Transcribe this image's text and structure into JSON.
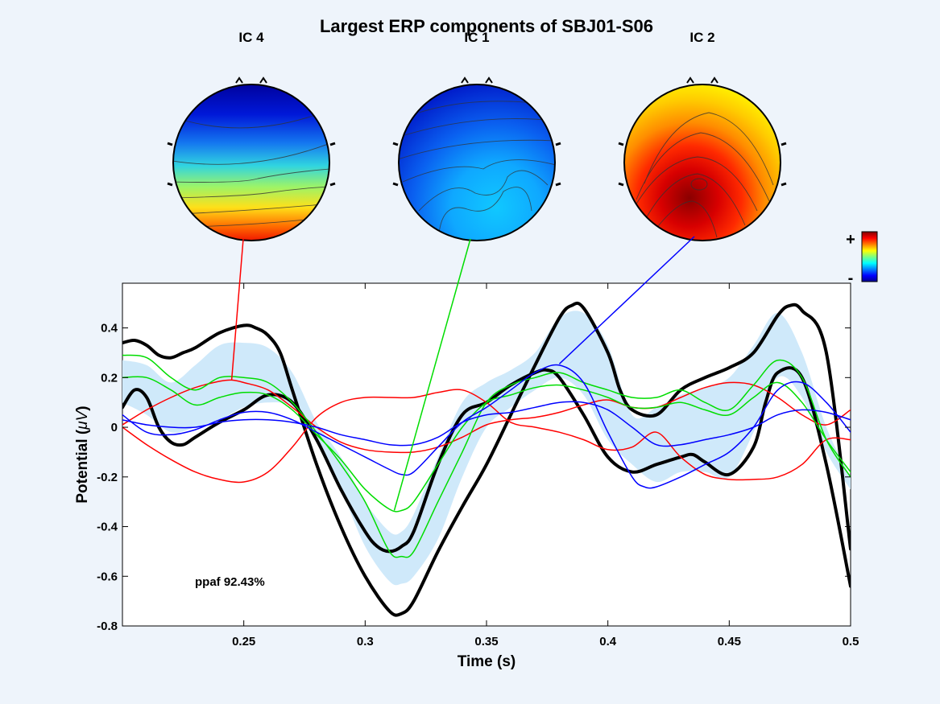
{
  "chart_data": {
    "type": "line",
    "title": "Largest ERP components of SBJ01-S06",
    "xlabel": "Time (s)",
    "ylabel_text": "Potential (",
    "ylabel_unit": "μV",
    "ylabel_close": ")",
    "xlim": [
      0.2,
      0.5
    ],
    "ylim": [
      -0.8,
      0.58
    ],
    "xticks": [
      0.25,
      0.3,
      0.35,
      0.4,
      0.45,
      0.5
    ],
    "xtick_labels": [
      "0.25",
      "0.3",
      "0.35",
      "0.4",
      "0.45",
      "0.5"
    ],
    "yticks": [
      -0.8,
      -0.6,
      -0.4,
      -0.2,
      0,
      0.2,
      0.4
    ],
    "ytick_labels": [
      "-0.8",
      "-0.6",
      "-0.4",
      "-0.2",
      "0",
      "0.2",
      "0.4"
    ],
    "annotation": "ppaf 92.43%",
    "colorbar": {
      "plus_label": "+",
      "minus_label": "-"
    },
    "colors": {
      "envelope_fill": "#cfe9fa",
      "black": "#000000",
      "red": "#ff0000",
      "green": "#00dd00",
      "blue": "#0000ff"
    },
    "components": [
      {
        "label": "IC 4",
        "color": "#ff0000",
        "peak_x": 0.245,
        "peak_y": 0.19
      },
      {
        "label": "IC 1",
        "color": "#00dd00",
        "peak_x": 0.312,
        "peak_y": -0.335
      },
      {
        "label": "IC 2",
        "color": "#0000ff",
        "peak_x": 0.38,
        "peak_y": 0.255
      }
    ],
    "envelope": {
      "x": [
        0.2,
        0.21,
        0.22,
        0.23,
        0.24,
        0.25,
        0.26,
        0.27,
        0.28,
        0.29,
        0.3,
        0.31,
        0.315,
        0.32,
        0.33,
        0.34,
        0.35,
        0.36,
        0.37,
        0.38,
        0.39,
        0.4,
        0.41,
        0.42,
        0.43,
        0.44,
        0.45,
        0.46,
        0.47,
        0.48,
        0.49,
        0.5
      ],
      "upper": [
        0.27,
        0.25,
        0.18,
        0.25,
        0.33,
        0.34,
        0.32,
        0.22,
        0.02,
        -0.12,
        -0.3,
        -0.42,
        -0.42,
        -0.35,
        -0.12,
        0.1,
        0.18,
        0.23,
        0.3,
        0.44,
        0.46,
        0.33,
        0.05,
        0.08,
        0.13,
        0.16,
        0.2,
        0.33,
        0.46,
        0.3,
        0.0,
        -0.2
      ],
      "lower": [
        0.1,
        0.05,
        -0.02,
        0.0,
        0.03,
        0.08,
        0.1,
        0.08,
        -0.05,
        -0.25,
        -0.48,
        -0.62,
        -0.63,
        -0.6,
        -0.45,
        -0.2,
        0.0,
        0.08,
        0.15,
        0.2,
        0.13,
        -0.05,
        -0.15,
        -0.22,
        -0.18,
        -0.18,
        -0.2,
        -0.02,
        0.2,
        0.12,
        -0.1,
        -0.25
      ]
    },
    "series": [
      {
        "color": "#000000",
        "width": 4,
        "x": [
          0.2,
          0.205,
          0.21,
          0.215,
          0.22,
          0.225,
          0.23,
          0.24,
          0.25,
          0.255,
          0.26,
          0.265,
          0.27,
          0.28,
          0.29,
          0.3,
          0.31,
          0.315,
          0.32,
          0.33,
          0.34,
          0.35,
          0.36,
          0.37,
          0.38,
          0.385,
          0.39,
          0.4,
          0.405,
          0.41,
          0.42,
          0.43,
          0.44,
          0.45,
          0.46,
          0.47,
          0.475,
          0.48,
          0.49,
          0.5
        ],
        "y": [
          0.34,
          0.35,
          0.33,
          0.29,
          0.28,
          0.3,
          0.32,
          0.38,
          0.41,
          0.4,
          0.37,
          0.3,
          0.15,
          -0.15,
          -0.4,
          -0.6,
          -0.74,
          -0.75,
          -0.7,
          -0.5,
          -0.32,
          -0.15,
          0.05,
          0.25,
          0.44,
          0.49,
          0.48,
          0.3,
          0.15,
          0.07,
          0.05,
          0.15,
          0.2,
          0.24,
          0.3,
          0.45,
          0.49,
          0.47,
          0.3,
          -0.49
        ]
      },
      {
        "color": "#000000",
        "width": 4,
        "x": [
          0.2,
          0.205,
          0.21,
          0.215,
          0.22,
          0.225,
          0.23,
          0.24,
          0.25,
          0.26,
          0.27,
          0.28,
          0.29,
          0.3,
          0.305,
          0.31,
          0.315,
          0.32,
          0.33,
          0.34,
          0.35,
          0.36,
          0.37,
          0.375,
          0.38,
          0.39,
          0.4,
          0.41,
          0.42,
          0.43,
          0.435,
          0.44,
          0.45,
          0.46,
          0.465,
          0.47,
          0.48,
          0.49,
          0.5
        ],
        "y": [
          0.08,
          0.15,
          0.12,
          0.0,
          -0.06,
          -0.07,
          -0.04,
          0.02,
          0.07,
          0.13,
          0.1,
          -0.05,
          -0.25,
          -0.42,
          -0.48,
          -0.5,
          -0.48,
          -0.42,
          -0.15,
          0.05,
          0.1,
          0.17,
          0.22,
          0.23,
          0.2,
          0.05,
          -0.12,
          -0.18,
          -0.15,
          -0.12,
          -0.11,
          -0.14,
          -0.19,
          -0.08,
          0.1,
          0.22,
          0.2,
          -0.15,
          -0.64
        ]
      },
      {
        "color": "#ff0000",
        "width": 1.5,
        "x": [
          0.2,
          0.21,
          0.22,
          0.23,
          0.24,
          0.245,
          0.25,
          0.26,
          0.27,
          0.28,
          0.29,
          0.3,
          0.31,
          0.32,
          0.33,
          0.34,
          0.35,
          0.36,
          0.37,
          0.38,
          0.39,
          0.4,
          0.41,
          0.42,
          0.43,
          0.44,
          0.45,
          0.46,
          0.47,
          0.48,
          0.49,
          0.5
        ],
        "y": [
          0.01,
          0.07,
          0.12,
          0.16,
          0.185,
          0.19,
          0.18,
          0.15,
          0.08,
          0.0,
          -0.06,
          -0.09,
          -0.1,
          -0.1,
          -0.08,
          -0.04,
          0.01,
          0.03,
          0.04,
          0.06,
          0.09,
          0.11,
          0.08,
          0.08,
          0.12,
          0.16,
          0.18,
          0.17,
          0.12,
          0.05,
          0.01,
          0.07
        ]
      },
      {
        "color": "#ff0000",
        "width": 1.5,
        "x": [
          0.2,
          0.21,
          0.22,
          0.23,
          0.24,
          0.25,
          0.26,
          0.27,
          0.28,
          0.29,
          0.3,
          0.31,
          0.32,
          0.33,
          0.34,
          0.35,
          0.36,
          0.37,
          0.38,
          0.39,
          0.4,
          0.41,
          0.42,
          0.43,
          0.44,
          0.45,
          0.46,
          0.47,
          0.48,
          0.49,
          0.5
        ],
        "y": [
          0.0,
          -0.07,
          -0.13,
          -0.18,
          -0.21,
          -0.22,
          -0.18,
          -0.08,
          0.04,
          0.1,
          0.12,
          0.12,
          0.12,
          0.14,
          0.15,
          0.1,
          0.02,
          0.0,
          -0.02,
          -0.05,
          -0.09,
          -0.08,
          -0.02,
          -0.12,
          -0.19,
          -0.21,
          -0.21,
          -0.2,
          -0.15,
          -0.05,
          -0.05
        ]
      },
      {
        "color": "#00dd00",
        "width": 1.5,
        "x": [
          0.2,
          0.21,
          0.22,
          0.23,
          0.24,
          0.25,
          0.26,
          0.27,
          0.28,
          0.29,
          0.3,
          0.31,
          0.315,
          0.32,
          0.33,
          0.34,
          0.35,
          0.36,
          0.37,
          0.38,
          0.39,
          0.4,
          0.41,
          0.42,
          0.43,
          0.44,
          0.45,
          0.46,
          0.47,
          0.48,
          0.49,
          0.5
        ],
        "y": [
          0.29,
          0.28,
          0.2,
          0.15,
          0.2,
          0.2,
          0.18,
          0.1,
          -0.02,
          -0.15,
          -0.3,
          -0.5,
          -0.52,
          -0.5,
          -0.3,
          -0.1,
          0.1,
          0.17,
          0.2,
          0.22,
          0.18,
          0.15,
          0.12,
          0.12,
          0.15,
          0.1,
          0.07,
          0.17,
          0.27,
          0.2,
          -0.05,
          -0.2
        ]
      },
      {
        "color": "#00dd00",
        "width": 1.5,
        "x": [
          0.2,
          0.21,
          0.22,
          0.23,
          0.24,
          0.25,
          0.26,
          0.27,
          0.28,
          0.29,
          0.3,
          0.31,
          0.315,
          0.32,
          0.33,
          0.34,
          0.35,
          0.36,
          0.37,
          0.38,
          0.39,
          0.4,
          0.41,
          0.42,
          0.43,
          0.44,
          0.45,
          0.46,
          0.47,
          0.48,
          0.49,
          0.5
        ],
        "y": [
          0.2,
          0.2,
          0.15,
          0.09,
          0.12,
          0.14,
          0.13,
          0.07,
          -0.03,
          -0.13,
          -0.25,
          -0.33,
          -0.335,
          -0.3,
          -0.15,
          0.0,
          0.1,
          0.13,
          0.16,
          0.17,
          0.15,
          0.12,
          0.08,
          0.08,
          0.1,
          0.07,
          0.05,
          0.12,
          0.18,
          0.1,
          -0.05,
          -0.18
        ]
      },
      {
        "color": "#0000ff",
        "width": 1.5,
        "x": [
          0.2,
          0.21,
          0.22,
          0.23,
          0.24,
          0.25,
          0.26,
          0.27,
          0.28,
          0.29,
          0.3,
          0.31,
          0.315,
          0.32,
          0.33,
          0.34,
          0.35,
          0.36,
          0.37,
          0.38,
          0.39,
          0.4,
          0.41,
          0.415,
          0.42,
          0.43,
          0.44,
          0.45,
          0.46,
          0.47,
          0.48,
          0.49,
          0.5
        ],
        "y": [
          0.05,
          -0.02,
          -0.03,
          -0.01,
          0.03,
          0.06,
          0.06,
          0.03,
          -0.02,
          -0.07,
          -0.12,
          -0.17,
          -0.19,
          -0.18,
          -0.08,
          0.02,
          0.08,
          0.15,
          0.22,
          0.25,
          0.18,
          -0.02,
          -0.2,
          -0.24,
          -0.24,
          -0.2,
          -0.15,
          -0.1,
          0.0,
          0.15,
          0.18,
          0.1,
          -0.02
        ]
      },
      {
        "color": "#0000ff",
        "width": 1.5,
        "x": [
          0.2,
          0.21,
          0.22,
          0.23,
          0.24,
          0.25,
          0.26,
          0.27,
          0.28,
          0.29,
          0.3,
          0.31,
          0.32,
          0.33,
          0.34,
          0.35,
          0.36,
          0.37,
          0.38,
          0.39,
          0.4,
          0.41,
          0.42,
          0.43,
          0.44,
          0.45,
          0.46,
          0.47,
          0.48,
          0.49,
          0.5
        ],
        "y": [
          0.03,
          0.01,
          0.0,
          0.0,
          0.02,
          0.03,
          0.03,
          0.02,
          0.0,
          -0.03,
          -0.05,
          -0.07,
          -0.07,
          -0.04,
          0.02,
          0.05,
          0.06,
          0.08,
          0.1,
          0.1,
          0.07,
          0.0,
          -0.07,
          -0.07,
          -0.05,
          -0.03,
          0.0,
          0.05,
          0.07,
          0.06,
          0.03
        ]
      }
    ]
  },
  "topomaps": [
    {
      "label": "IC 4",
      "scheme": "ic4"
    },
    {
      "label": "IC 1",
      "scheme": "ic1"
    },
    {
      "label": "IC 2",
      "scheme": "ic2"
    }
  ]
}
